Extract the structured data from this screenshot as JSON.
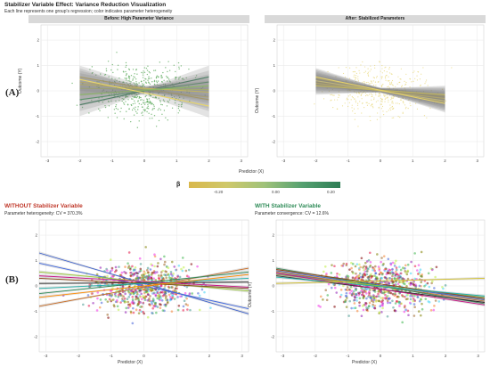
{
  "title": "Stabilizer Variable Effect: Variance Reduction Visualization",
  "subtitle": "Each line represents one group's regression; color indicates parameter heterogeneity",
  "panel_labels": {
    "a": "(A)",
    "b": "(B)"
  },
  "colors": {
    "ci_band": "#7f7f7f",
    "grid": "#ebebeb",
    "points_green": "#5aa85a",
    "points_yellow": "#e6d36b",
    "without_title": "#c0392b",
    "with_title": "#2e8b57",
    "legend_low": "#d9b84c",
    "legend_high": "#2e7d55"
  },
  "legend": {
    "title": "β",
    "ticks": [
      "-0.20",
      "0.00",
      "0.20"
    ]
  },
  "chart_data": [
    {
      "id": "A-before",
      "type": "line",
      "title": "Before: High Parameter Variance",
      "xlabel": "Predictor (X)",
      "ylabel": "Outcome (Y)",
      "xlim": [
        -3.2,
        3.2
      ],
      "ylim": [
        -2.6,
        2.6
      ],
      "xticks": [
        -3,
        -2,
        -1,
        0,
        1,
        2,
        3
      ],
      "yticks": [
        -2,
        -1,
        0,
        1,
        2
      ],
      "lines": [
        {
          "x": [
            -2,
            2
          ],
          "y": [
            0.55,
            -0.35
          ],
          "color": "#e0c24a"
        },
        {
          "x": [
            -2,
            2
          ],
          "y": [
            0.35,
            -0.25
          ],
          "color": "#e6cf5c"
        },
        {
          "x": [
            -2,
            2
          ],
          "y": [
            -0.55,
            0.55
          ],
          "color": "#2e7d55"
        },
        {
          "x": [
            -2,
            2
          ],
          "y": [
            -0.35,
            0.35
          ],
          "color": "#4a9a62"
        },
        {
          "x": [
            -2,
            2
          ],
          "y": [
            0.1,
            0.05
          ],
          "color": "#b9c46a"
        },
        {
          "x": [
            -2,
            2
          ],
          "y": [
            0.25,
            -0.05
          ],
          "color": "#d2c45a"
        },
        {
          "x": [
            -2,
            2
          ],
          "y": [
            -0.15,
            0.2
          ],
          "color": "#8cb865"
        },
        {
          "x": [
            -2,
            2
          ],
          "y": [
            0.45,
            -0.6
          ],
          "color": "#e8d56a"
        }
      ]
    },
    {
      "id": "A-after",
      "type": "line",
      "title": "After: Stabilized Parameters",
      "xlabel": "Predictor (X)",
      "ylabel": "Outcome (Y)",
      "xlim": [
        -3.2,
        3.2
      ],
      "ylim": [
        -2.6,
        2.6
      ],
      "xticks": [
        -3,
        -2,
        -1,
        0,
        1,
        2,
        3
      ],
      "yticks": [
        -2,
        -1,
        0,
        1,
        2
      ],
      "lines": [
        {
          "x": [
            -2,
            2
          ],
          "y": [
            0.45,
            -0.35
          ],
          "color": "#e6d36b"
        },
        {
          "x": [
            -2,
            2
          ],
          "y": [
            0.35,
            -0.25
          ],
          "color": "#e0c24a"
        },
        {
          "x": [
            -2,
            2
          ],
          "y": [
            0.25,
            -0.2
          ],
          "color": "#d9c85f"
        },
        {
          "x": [
            -2,
            2
          ],
          "y": [
            0.5,
            -0.45
          ],
          "color": "#e8d56a"
        },
        {
          "x": [
            -2,
            2
          ],
          "y": [
            0.3,
            -0.3
          ],
          "color": "#e6cf5c"
        },
        {
          "x": [
            -2,
            2
          ],
          "y": [
            0.4,
            -0.4
          ],
          "color": "#ebd978"
        },
        {
          "x": [
            -2,
            2
          ],
          "y": [
            0.2,
            -0.15
          ],
          "color": "#d2c45a"
        },
        {
          "x": [
            -2,
            2
          ],
          "y": [
            0.55,
            -0.5
          ],
          "color": "#e4d06a"
        }
      ]
    },
    {
      "id": "B-without",
      "type": "line",
      "title": "WITHOUT Stabilizer Variable",
      "annotation": "Parameter heterogeneity: CV = 370.3%",
      "xlabel": "Predictor (X)",
      "ylabel": "Outcome (Y)",
      "xlim": [
        -3.2,
        3.2
      ],
      "ylim": [
        -2.6,
        2.6
      ],
      "xticks": [
        -3,
        -2,
        -1,
        0,
        1,
        2,
        3
      ],
      "yticks": [
        -2,
        -1,
        0,
        1,
        2
      ],
      "lines": [
        {
          "x": [
            -3.2,
            3.2
          ],
          "y": [
            1.3,
            -1.1
          ],
          "color": "#3a5fcd"
        },
        {
          "x": [
            -3.2,
            3.2
          ],
          "y": [
            0.9,
            -0.9
          ],
          "color": "#4169e1"
        },
        {
          "x": [
            -3.2,
            3.2
          ],
          "y": [
            -0.8,
            0.7
          ],
          "color": "#c86e28"
        },
        {
          "x": [
            -3.2,
            3.2
          ],
          "y": [
            -0.3,
            0.55
          ],
          "color": "#2e8b57"
        },
        {
          "x": [
            -3.2,
            3.2
          ],
          "y": [
            0.55,
            -0.2
          ],
          "color": "#9acd32"
        },
        {
          "x": [
            -3.2,
            3.2
          ],
          "y": [
            0.1,
            0.15
          ],
          "color": "#222222"
        },
        {
          "x": [
            -3.2,
            3.2
          ],
          "y": [
            0.3,
            -0.1
          ],
          "color": "#8b4513"
        },
        {
          "x": [
            -3.2,
            3.2
          ],
          "y": [
            -0.1,
            0.3
          ],
          "color": "#20b2aa"
        },
        {
          "x": [
            -3.2,
            3.2
          ],
          "y": [
            0.4,
            -0.05
          ],
          "color": "#c71585"
        },
        {
          "x": [
            -3.2,
            3.2
          ],
          "y": [
            -0.45,
            0.45
          ],
          "color": "#ff8c00"
        }
      ]
    },
    {
      "id": "B-with",
      "type": "line",
      "title": "WITH Stabilizer Variable",
      "annotation": "Parameter convergence: CV = 12.6%",
      "xlabel": "Predictor (X)",
      "ylabel": "Outcome (Y)",
      "xlim": [
        -3.2,
        3.2
      ],
      "ylim": [
        -2.6,
        2.6
      ],
      "xticks": [
        -3,
        -2,
        -1,
        0,
        1,
        2,
        3
      ],
      "yticks": [
        -2,
        -1,
        0,
        1,
        2
      ],
      "lines": [
        {
          "x": [
            -3.2,
            3.2
          ],
          "y": [
            0.6,
            -0.55
          ],
          "color": "#3a5fcd"
        },
        {
          "x": [
            -3.2,
            3.2
          ],
          "y": [
            0.5,
            -0.5
          ],
          "color": "#4169e1"
        },
        {
          "x": [
            -3.2,
            3.2
          ],
          "y": [
            0.55,
            -0.6
          ],
          "color": "#c86e28"
        },
        {
          "x": [
            -3.2,
            3.2
          ],
          "y": [
            0.7,
            -0.7
          ],
          "color": "#2e8b57"
        },
        {
          "x": [
            -3.2,
            3.2
          ],
          "y": [
            0.45,
            -0.45
          ],
          "color": "#9acd32"
        },
        {
          "x": [
            -3.2,
            3.2
          ],
          "y": [
            0.4,
            -0.65
          ],
          "color": "#222222"
        },
        {
          "x": [
            -3.2,
            3.2
          ],
          "y": [
            0.65,
            -0.5
          ],
          "color": "#8b4513"
        },
        {
          "x": [
            -3.2,
            3.2
          ],
          "y": [
            0.35,
            -0.4
          ],
          "color": "#20b2aa"
        },
        {
          "x": [
            -3.2,
            3.2
          ],
          "y": [
            0.5,
            -0.75
          ],
          "color": "#c71585"
        },
        {
          "x": [
            -3.2,
            3.2
          ],
          "y": [
            0.1,
            0.3
          ],
          "color": "#d4c22a"
        }
      ]
    }
  ]
}
